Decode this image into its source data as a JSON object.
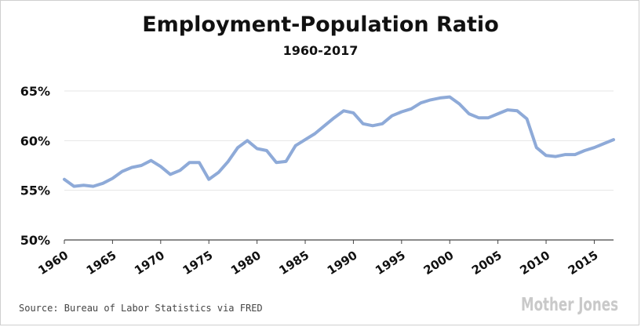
{
  "chart_data": {
    "type": "line",
    "title": "Employment-Population Ratio",
    "subtitle": "1960-2017",
    "xlabel": "",
    "ylabel": "",
    "xlim": [
      1960,
      2017
    ],
    "ylim": [
      50,
      65
    ],
    "y_ticks": [
      50,
      55,
      60,
      65
    ],
    "y_tick_labels": [
      "50%",
      "55%",
      "60%",
      "65%"
    ],
    "x_ticks": [
      1960,
      1965,
      1970,
      1975,
      1980,
      1985,
      1990,
      1995,
      2000,
      2005,
      2010,
      2015
    ],
    "x_tick_labels": [
      "1960",
      "1965",
      "1970",
      "1975",
      "1980",
      "1985",
      "1990",
      "1995",
      "2000",
      "2005",
      "2010",
      "2015"
    ],
    "grid": "horizontal",
    "line_color": "#8eaad8",
    "x": [
      1960,
      1961,
      1962,
      1963,
      1964,
      1965,
      1966,
      1967,
      1968,
      1969,
      1970,
      1971,
      1972,
      1973,
      1974,
      1975,
      1976,
      1977,
      1978,
      1979,
      1980,
      1981,
      1982,
      1983,
      1984,
      1985,
      1986,
      1987,
      1988,
      1989,
      1990,
      1991,
      1992,
      1993,
      1994,
      1995,
      1996,
      1997,
      1998,
      1999,
      2000,
      2001,
      2002,
      2003,
      2004,
      2005,
      2006,
      2007,
      2008,
      2009,
      2010,
      2011,
      2012,
      2013,
      2014,
      2015,
      2016,
      2017
    ],
    "series": [
      {
        "values": [
          56.1,
          55.4,
          55.5,
          55.4,
          55.7,
          56.2,
          56.9,
          57.3,
          57.5,
          58.0,
          57.4,
          56.6,
          57.0,
          57.8,
          57.8,
          56.1,
          56.8,
          57.9,
          59.3,
          60.0,
          59.2,
          59.0,
          57.8,
          57.9,
          59.5,
          60.1,
          60.7,
          61.5,
          62.3,
          63.0,
          62.8,
          61.7,
          61.5,
          61.7,
          62.5,
          62.9,
          63.2,
          63.8,
          64.1,
          64.3,
          64.4,
          63.7,
          62.7,
          62.3,
          62.3,
          62.7,
          63.1,
          63.0,
          62.2,
          59.3,
          58.5,
          58.4,
          58.6,
          58.6,
          59.0,
          59.3,
          59.7,
          60.1
        ]
      }
    ]
  },
  "source": "Source: Bureau of Labor Statistics via FRED",
  "brand": "Mother Jones"
}
